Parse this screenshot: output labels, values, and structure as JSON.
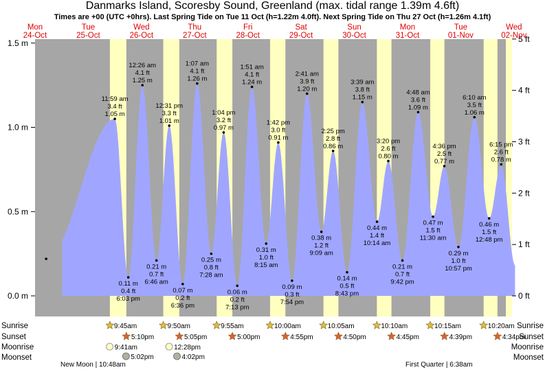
{
  "header": {
    "title": "Danmarks Island, Scoresby Sound, Greenland (max. tidal range 1.39m 4.6ft)",
    "subtitle": "Times are +00 (UTC +0hrs). Last Spring Tide on Tue 11 Oct (h=1.22m 4.0ft). Next Spring Tide on Thu 27 Oct (h=1.26m 4.1ft)"
  },
  "colors": {
    "night": "#a6a6a6",
    "day": "#ffffc0",
    "tide_fill": "#a0a6ff",
    "day_label": "#e00000",
    "sun_icon": "#d8c040",
    "sunset_icon": "#e06030",
    "moon_icon": "#ffffc8",
    "moonset_icon": "#b0b0a0"
  },
  "days": [
    {
      "weekday": "Mon",
      "date": "24-Oct"
    },
    {
      "weekday": "Tue",
      "date": "25-Oct"
    },
    {
      "weekday": "Wed",
      "date": "26-Oct"
    },
    {
      "weekday": "Thu",
      "date": "27-Oct"
    },
    {
      "weekday": "Fri",
      "date": "28-Oct"
    },
    {
      "weekday": "Sat",
      "date": "29-Oct"
    },
    {
      "weekday": "Sun",
      "date": "30-Oct"
    },
    {
      "weekday": "Mon",
      "date": "31-Oct"
    },
    {
      "weekday": "Tue",
      "date": "01-Nov"
    },
    {
      "weekday": "Wed",
      "date": "02-Nov"
    }
  ],
  "chart_data": {
    "type": "area",
    "title": "Danmarks Island tide heights",
    "x_unit": "hours since 24-Oct 00:00 UTC",
    "y_left": {
      "label": "m",
      "ylim": [
        -0.05,
        1.52
      ],
      "ticks": [
        "0.0 m",
        "0.5 m",
        "1.0 m",
        "1.5 m"
      ],
      "tick_values": [
        0,
        0.5,
        1.0,
        1.5
      ]
    },
    "y_right": {
      "label": "ft",
      "ticks": [
        "0 ft",
        "1 ft",
        "2 ft",
        "3 ft",
        "4 ft",
        "5 ft"
      ],
      "tick_values": [
        0,
        1,
        2,
        3,
        4,
        5
      ]
    },
    "series_start": {
      "t": 0,
      "h": 1.22
    },
    "tide_series_end_hours": 216.5,
    "extremes": [
      {
        "type": "low",
        "t": 5.0,
        "h": 0.22,
        "unlabeled": true
      },
      {
        "type": "high",
        "t": 35.98,
        "time": "11:59 am",
        "ft": "3.4 ft",
        "m": "1.05 m"
      },
      {
        "type": "low",
        "t": 42.05,
        "time": "6:03 pm",
        "ft": "0.4 ft",
        "m": "0.11 m"
      },
      {
        "type": "high",
        "t": 48.43,
        "time": "12:26 am",
        "ft": "4.1 ft",
        "m": "1.25 m"
      },
      {
        "type": "low",
        "t": 54.77,
        "time": "6:46 am",
        "ft": "0.7 ft",
        "m": "0.21 m"
      },
      {
        "type": "high",
        "t": 60.52,
        "time": "12:31 pm",
        "ft": "3.3 ft",
        "m": "1.01 m"
      },
      {
        "type": "low",
        "t": 66.6,
        "time": "6:36 pm",
        "ft": "0.2 ft",
        "m": "0.07 m"
      },
      {
        "type": "high",
        "t": 73.12,
        "time": "1:07 am",
        "ft": "4.1 ft",
        "m": "1.26 m"
      },
      {
        "type": "low",
        "t": 79.47,
        "time": "7:28 am",
        "ft": "0.8 ft",
        "m": "0.25 m"
      },
      {
        "type": "high",
        "t": 85.07,
        "time": "1:04 pm",
        "ft": "3.2 ft",
        "m": "0.97 m"
      },
      {
        "type": "low",
        "t": 91.22,
        "time": "7:13 pm",
        "ft": "0.2 ft",
        "m": "0.06 m"
      },
      {
        "type": "high",
        "t": 97.85,
        "time": "1:51 am",
        "ft": "4.1 ft",
        "m": "1.24 m"
      },
      {
        "type": "low",
        "t": 104.25,
        "time": "8:15 am",
        "ft": "1.0 ft",
        "m": "0.31 m"
      },
      {
        "type": "high",
        "t": 109.7,
        "time": "1:42 pm",
        "ft": "3.0 ft",
        "m": "0.91 m"
      },
      {
        "type": "low",
        "t": 115.9,
        "time": "7:54 pm",
        "ft": "0.3 ft",
        "m": "0.09 m"
      },
      {
        "type": "high",
        "t": 122.68,
        "time": "2:41 am",
        "ft": "3.9 ft",
        "m": "1.20 m"
      },
      {
        "type": "low",
        "t": 129.15,
        "time": "9:09 am",
        "ft": "1.2 ft",
        "m": "0.38 m"
      },
      {
        "type": "high",
        "t": 134.42,
        "time": "2:25 pm",
        "ft": "2.8 ft",
        "m": "0.86 m"
      },
      {
        "type": "low",
        "t": 140.72,
        "time": "8:43 pm",
        "ft": "0.5 ft",
        "m": "0.14 m"
      },
      {
        "type": "high",
        "t": 147.65,
        "time": "3:39 am",
        "ft": "3.8 ft",
        "m": "1.15 m"
      },
      {
        "type": "low",
        "t": 154.23,
        "time": "10:14 am",
        "ft": "1.4 ft",
        "m": "0.44 m"
      },
      {
        "type": "high",
        "t": 159.33,
        "time": "3:20 pm",
        "ft": "2.6 ft",
        "m": "0.80 m"
      },
      {
        "type": "low",
        "t": 165.7,
        "time": "9:42 pm",
        "ft": "0.7 ft",
        "m": "0.21 m"
      },
      {
        "type": "high",
        "t": 172.8,
        "time": "4:48 am",
        "ft": "3.6 ft",
        "m": "1.09 m"
      },
      {
        "type": "low",
        "t": 179.5,
        "time": "11:30 am",
        "ft": "1.5 ft",
        "m": "0.47 m"
      },
      {
        "type": "high",
        "t": 184.6,
        "time": "4:36 pm",
        "ft": "2.5 ft",
        "m": "0.77 m"
      },
      {
        "type": "low",
        "t": 190.95,
        "time": "10:57 pm",
        "ft": "1.0 ft",
        "m": "0.29 m"
      },
      {
        "type": "high",
        "t": 198.17,
        "time": "6:10 am",
        "ft": "3.5 ft",
        "m": "1.06 m"
      },
      {
        "type": "low",
        "t": 204.8,
        "time": "12:48 pm",
        "ft": "1.5 ft",
        "m": "0.46 m"
      },
      {
        "type": "high",
        "t": 210.25,
        "time": "6:15 pm",
        "ft": "2.6 ft",
        "m": "0.78 m"
      }
    ],
    "sun": [
      {
        "day": "25-Oct",
        "rise": "9:45am",
        "set": "5:10pm",
        "rise_h": 33.75,
        "set_h": 41.17
      },
      {
        "day": "26-Oct",
        "rise": "9:50am",
        "set": "5:05pm",
        "rise_h": 57.83,
        "set_h": 65.08
      },
      {
        "day": "27-Oct",
        "rise": "9:55am",
        "set": "5:00pm",
        "rise_h": 81.92,
        "set_h": 89.0
      },
      {
        "day": "28-Oct",
        "rise": "10:00am",
        "set": "4:55pm",
        "rise_h": 106.0,
        "set_h": 112.92
      },
      {
        "day": "29-Oct",
        "rise": "10:05am",
        "set": "4:50pm",
        "rise_h": 130.08,
        "set_h": 136.83
      },
      {
        "day": "30-Oct",
        "rise": "10:10am",
        "set": "4:45pm",
        "rise_h": 154.17,
        "set_h": 160.75
      },
      {
        "day": "31-Oct",
        "rise": "10:15am",
        "set": "4:39pm",
        "rise_h": 178.25,
        "set_h": 184.65
      },
      {
        "day": "01-Nov",
        "rise": "10:20am",
        "set": "4:34pm",
        "rise_h": 202.33,
        "set_h": 208.57
      }
    ],
    "moon": [
      {
        "kind": "rise",
        "time": "9:41am",
        "t": 33.68
      },
      {
        "kind": "rise",
        "time": "12:28pm",
        "t": 60.47
      },
      {
        "kind": "set",
        "time": "5:02pm",
        "t": 41.03
      },
      {
        "kind": "set",
        "time": "4:02pm",
        "t": 64.03
      }
    ],
    "moon_phases": [
      {
        "label": "New Moon | 10:48am"
      },
      {
        "label": "First Quarter | 6:38am"
      }
    ]
  },
  "row_labels": {
    "sunrise": "Sunrise",
    "sunset": "Sunset",
    "moonrise": "Moonrise",
    "moonset": "Moonset"
  }
}
